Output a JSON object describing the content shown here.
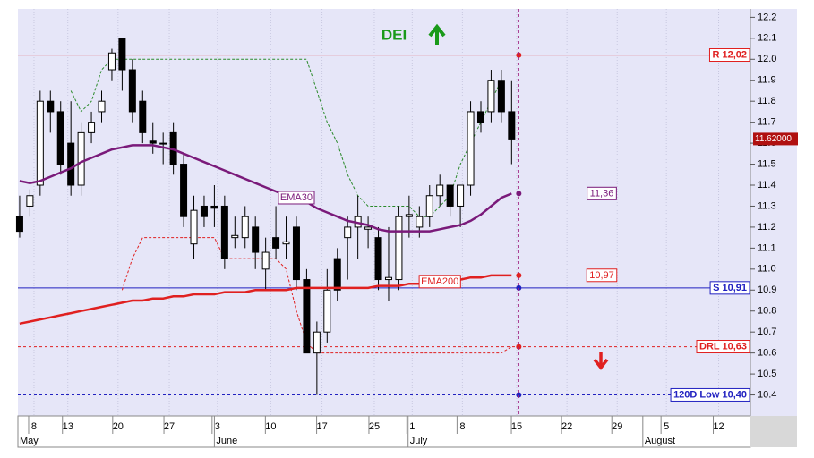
{
  "chart_data": {
    "type": "candlestick",
    "open": [
      11.25,
      11.3,
      11.4,
      11.8,
      11.75,
      11.6,
      11.4,
      11.65,
      11.75,
      11.95,
      12.1,
      11.95,
      11.8,
      11.61,
      11.6,
      11.65,
      11.5,
      11.12,
      11.3,
      11.3,
      11.3,
      11.15,
      11.15,
      11.2,
      11.0,
      11.15,
      11.12,
      11.2,
      10.95,
      10.6,
      10.7,
      11.05,
      11.15,
      11.2,
      11.19,
      11.15,
      10.95,
      10.95,
      11.25,
      11.2,
      11.25,
      11.35,
      11.4,
      11.3,
      11.4,
      11.75,
      11.75,
      11.9,
      11.75
    ],
    "high": [
      11.35,
      11.38,
      11.85,
      11.85,
      11.8,
      11.8,
      11.7,
      11.75,
      11.85,
      12.05,
      12.1,
      12.0,
      11.85,
      11.7,
      11.65,
      11.7,
      11.55,
      11.35,
      11.35,
      11.4,
      11.35,
      11.25,
      11.3,
      11.25,
      11.15,
      11.3,
      11.25,
      11.25,
      11.0,
      10.75,
      11.0,
      11.1,
      11.25,
      11.35,
      11.25,
      11.2,
      11.2,
      11.3,
      11.35,
      11.3,
      11.4,
      11.45,
      11.4,
      11.4,
      11.8,
      11.8,
      11.95,
      11.95,
      11.9
    ],
    "low": [
      11.15,
      11.25,
      11.35,
      11.65,
      11.45,
      11.35,
      11.35,
      11.6,
      11.7,
      11.9,
      11.85,
      11.7,
      11.6,
      11.55,
      11.5,
      11.45,
      11.2,
      11.05,
      11.2,
      11.2,
      11.0,
      11.1,
      11.1,
      11.0,
      10.9,
      11.05,
      11.05,
      10.9,
      10.6,
      10.4,
      10.65,
      10.85,
      10.95,
      11.05,
      11.1,
      10.9,
      10.85,
      10.9,
      11.15,
      11.15,
      11.2,
      11.3,
      11.25,
      11.2,
      11.35,
      11.65,
      11.7,
      11.7,
      11.5
    ],
    "close": [
      11.18,
      11.35,
      11.8,
      11.75,
      11.5,
      11.4,
      11.65,
      11.7,
      11.8,
      12.03,
      11.95,
      11.75,
      11.65,
      11.6,
      11.6,
      11.5,
      11.25,
      11.28,
      11.25,
      11.29,
      11.05,
      11.16,
      11.25,
      11.08,
      11.08,
      11.1,
      11.13,
      10.95,
      10.6,
      10.7,
      10.9,
      10.9,
      11.2,
      11.25,
      11.2,
      10.95,
      10.96,
      11.25,
      11.26,
      11.25,
      11.35,
      11.4,
      11.3,
      11.4,
      11.75,
      11.7,
      11.9,
      11.75,
      11.62
    ],
    "up_color": "#ffffff",
    "down_color": "#000000",
    "xlim": [
      -0.17,
      71.3
    ],
    "ylim": [
      10.3,
      12.24
    ],
    "yticks": [
      10.4,
      10.5,
      10.6,
      10.7,
      10.8,
      10.9,
      {
        "value": 11,
        "label": "11.0"
      },
      11.1,
      11.2,
      11.3,
      11.4,
      11.5,
      11.6,
      11.7,
      11.8,
      11.9,
      {
        "value": 12,
        "label": "12.0"
      },
      12.1,
      12.2
    ],
    "xticks": [
      {
        "value": 1.4,
        "label": "8"
      },
      {
        "value": 4.7,
        "label": "13"
      },
      {
        "value": 9.6,
        "label": "20"
      },
      {
        "value": 14.6,
        "label": "27"
      },
      {
        "value": 19.3,
        "label": "3"
      },
      {
        "value": 24.5,
        "label": "10"
      },
      {
        "value": 29.5,
        "label": "17"
      },
      {
        "value": 34.6,
        "label": "25"
      },
      {
        "value": 38.3,
        "label": "1"
      },
      {
        "value": 43.2,
        "label": "8"
      },
      {
        "value": 48.5,
        "label": "15"
      },
      {
        "value": 53.4,
        "label": "22"
      },
      {
        "value": 58.3,
        "label": "29"
      },
      {
        "value": 63.1,
        "label": "5"
      },
      {
        "value": 68.2,
        "label": "12"
      }
    ],
    "month_ticks": [
      {
        "value": -0.17,
        "label": "May"
      },
      {
        "value": 19,
        "label": "June"
      },
      {
        "value": 37.9,
        "label": "July"
      },
      {
        "value": 60.8,
        "label": "August"
      }
    ],
    "grid": true,
    "series": [
      {
        "name": "EMA30",
        "color": "#7a1a7a",
        "end_label": "11,36",
        "values": [
          11.42,
          11.41,
          11.42,
          11.44,
          11.46,
          11.48,
          11.51,
          11.53,
          11.55,
          11.57,
          11.58,
          11.59,
          11.59,
          11.59,
          11.58,
          11.57,
          11.55,
          11.53,
          11.51,
          11.49,
          11.47,
          11.45,
          11.43,
          11.41,
          11.39,
          11.37,
          11.35,
          11.34,
          11.32,
          11.29,
          11.27,
          11.25,
          11.23,
          11.22,
          11.21,
          11.19,
          11.18,
          11.18,
          11.18,
          11.18,
          11.18,
          11.19,
          11.2,
          11.21,
          11.23,
          11.26,
          11.3,
          11.34,
          11.36
        ]
      },
      {
        "name": "EMA200",
        "color": "#e02020",
        "end_label": "10,97",
        "values": [
          10.74,
          10.75,
          10.76,
          10.77,
          10.78,
          10.79,
          10.8,
          10.81,
          10.82,
          10.83,
          10.84,
          10.85,
          10.85,
          10.86,
          10.86,
          10.87,
          10.87,
          10.88,
          10.88,
          10.88,
          10.89,
          10.89,
          10.89,
          10.9,
          10.9,
          10.9,
          10.9,
          10.91,
          10.91,
          10.91,
          10.91,
          10.91,
          10.91,
          10.91,
          10.91,
          10.92,
          10.92,
          10.92,
          10.93,
          10.93,
          10.94,
          10.94,
          10.95,
          10.95,
          10.96,
          10.96,
          10.97,
          10.97,
          10.97
        ]
      }
    ],
    "stops": [
      {
        "color": "#2a8a2a",
        "values": [
          null,
          null,
          null,
          null,
          null,
          11.85,
          11.75,
          11.8,
          11.95,
          12.0,
          12.0,
          12.0,
          12.0,
          12.0,
          12.0,
          12.0,
          12.0,
          12.0,
          12.0,
          12.0,
          12.0,
          12.0,
          12.0,
          12.0,
          12.0,
          12.0,
          12.0,
          12.0,
          12.0,
          11.85,
          11.7,
          11.6,
          11.45,
          11.35,
          11.3,
          11.3,
          11.3,
          11.3,
          11.3,
          11.25,
          11.25,
          11.3,
          11.35,
          11.5,
          11.6,
          11.7,
          11.8,
          11.9,
          null
        ]
      },
      {
        "color": "#e02020",
        "values": [
          null,
          null,
          null,
          null,
          null,
          null,
          null,
          null,
          null,
          null,
          10.9,
          11.05,
          11.15,
          11.15,
          11.15,
          11.15,
          11.15,
          11.15,
          11.15,
          11.15,
          11.05,
          11.05,
          11.05,
          11.05,
          11.05,
          11.05,
          11.0,
          10.8,
          10.65,
          10.6,
          10.6,
          10.6,
          10.6,
          10.6,
          10.6,
          10.6,
          10.6,
          10.6,
          10.6,
          10.6,
          10.6,
          10.6,
          10.6,
          10.6,
          10.6,
          10.6,
          10.6,
          10.6,
          10.63
        ]
      }
    ],
    "levels": [
      {
        "label": "R 12,02",
        "value": 12.02,
        "color": "#e02020",
        "dash": false
      },
      {
        "label": "S 10,91",
        "value": 10.91,
        "color": "#2020c0",
        "dash": false
      },
      {
        "label": "DRL 10,63",
        "value": 10.63,
        "color": "#e02020",
        "dash": true
      },
      {
        "label": "120D Low 10,40",
        "value": 10.4,
        "color": "#2020c0",
        "dash": true
      }
    ],
    "cursor_x": 48.7,
    "last_price": {
      "value": 11.62,
      "label": "11.62000"
    },
    "annotation": "DEI"
  }
}
